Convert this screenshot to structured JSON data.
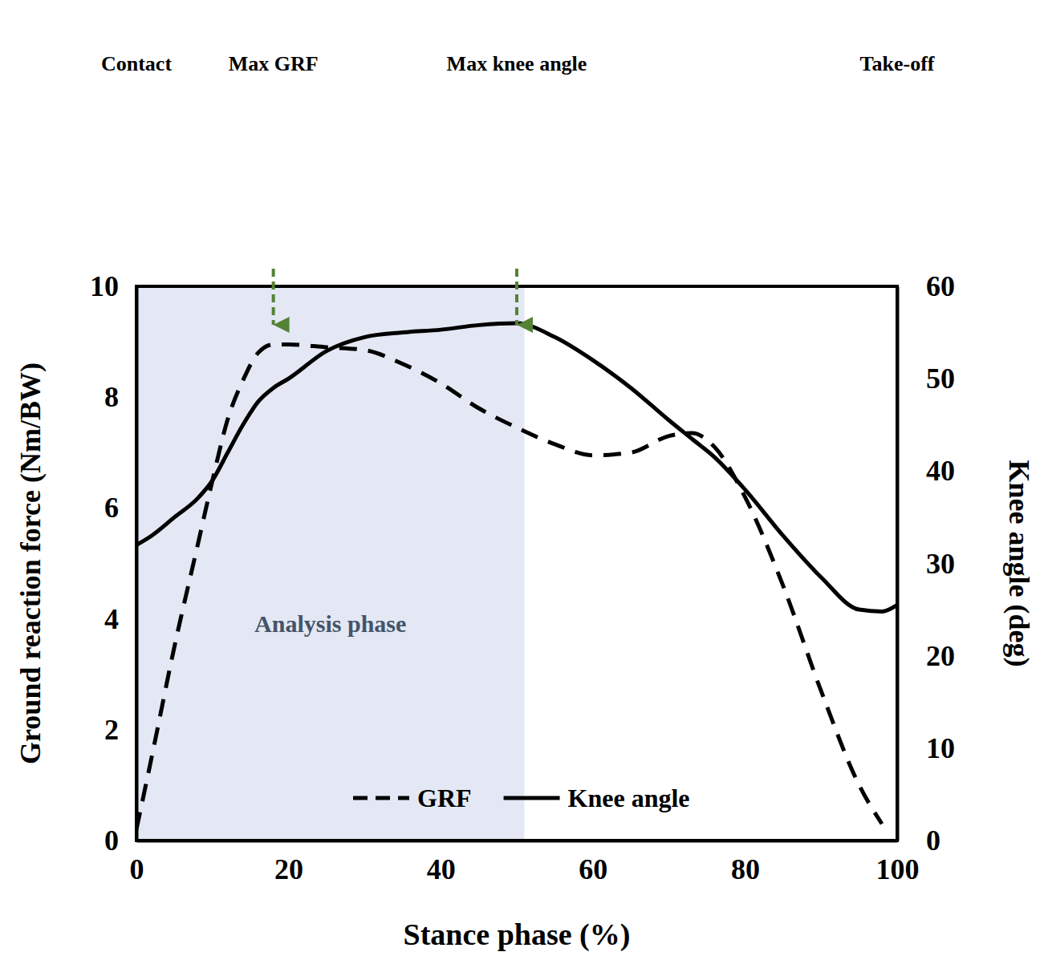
{
  "chart_data": {
    "type": "line",
    "x_label": "Stance phase (%)",
    "y_label": "Ground reaction force (Nm/BW)",
    "y2_label": "Knee angle (deg)",
    "x": [
      0,
      2,
      5,
      8,
      10,
      12,
      14,
      16,
      18,
      20,
      25,
      30,
      35,
      40,
      45,
      50,
      55,
      60,
      65,
      70,
      73,
      76,
      80,
      85,
      90,
      95,
      98,
      100
    ],
    "series": [
      {
        "name": "GRF",
        "axis": "y",
        "color": "#000000",
        "line_style": "dashed",
        "values": [
          0.2,
          1.5,
          3.5,
          5.3,
          6.5,
          7.6,
          8.3,
          8.8,
          8.95,
          8.95,
          8.9,
          8.85,
          8.6,
          8.25,
          7.8,
          7.45,
          7.15,
          6.95,
          7.0,
          7.3,
          7.35,
          7.1,
          6.2,
          4.6,
          2.7,
          1.0,
          0.3,
          null
        ]
      },
      {
        "name": "Knee angle",
        "axis": "y2",
        "color": "#000000",
        "line_style": "solid",
        "values": [
          32,
          33,
          35,
          37,
          39,
          42,
          45,
          47.5,
          49,
          50,
          53,
          54.5,
          55,
          55.3,
          55.8,
          56,
          54.5,
          52,
          49,
          45.5,
          43.5,
          41.5,
          38,
          33,
          28.5,
          25,
          24.8,
          25.5
        ]
      }
    ],
    "xlim": [
      0,
      100
    ],
    "xticks": [
      0,
      20,
      40,
      60,
      80,
      100
    ],
    "ylim": [
      0,
      10
    ],
    "yticks": [
      0,
      2,
      4,
      6,
      8,
      10
    ],
    "y2lim": [
      0,
      60
    ],
    "y2ticks": [
      0,
      10,
      20,
      30,
      40,
      50,
      60
    ],
    "grid": false,
    "legend": "bottom",
    "analysis_phase": {
      "label": "Analysis phase",
      "x_range": [
        0,
        51
      ],
      "color": "#e3e8f4"
    },
    "events": [
      {
        "label": "Contact",
        "x": 0,
        "arrow": false
      },
      {
        "label": "Max GRF",
        "x": 18,
        "arrow": true
      },
      {
        "label": "Max knee angle",
        "x": 50,
        "arrow": true
      },
      {
        "label": "Take-off",
        "x": 100,
        "arrow": false
      }
    ],
    "arrow_color": "#548235"
  }
}
